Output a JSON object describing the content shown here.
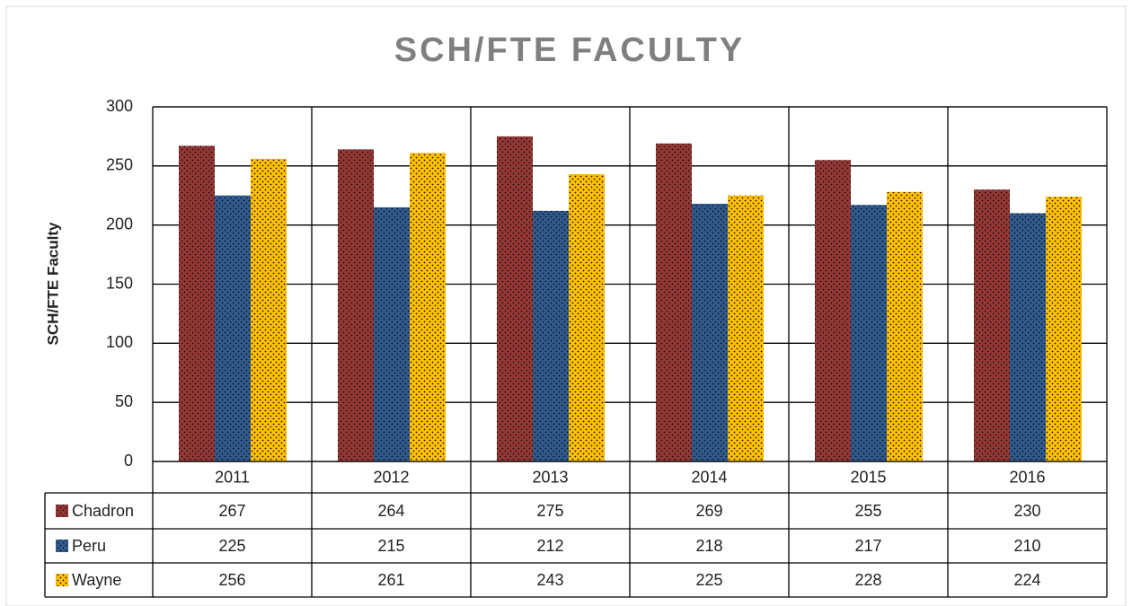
{
  "chart_data": {
    "type": "bar",
    "title": "SCH/FTE FACULTY",
    "y_label": "SCH/FTE Faculty",
    "categories": [
      "2011",
      "2012",
      "2013",
      "2014",
      "2015",
      "2016"
    ],
    "series": [
      {
        "name": "Chadron",
        "color": "#953735",
        "values": [
          267,
          264,
          275,
          269,
          255,
          230
        ]
      },
      {
        "name": "Peru",
        "color": "#2f5b8f",
        "values": [
          225,
          215,
          212,
          218,
          217,
          210
        ]
      },
      {
        "name": "Wayne",
        "color": "#ffc000",
        "values": [
          256,
          261,
          243,
          225,
          228,
          224
        ]
      }
    ],
    "ylim": [
      0,
      300
    ],
    "yticks": [
      0,
      50,
      100,
      150,
      200,
      250,
      300
    ],
    "grid": true,
    "data_table": true
  }
}
